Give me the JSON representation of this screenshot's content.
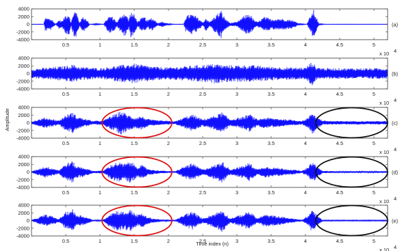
{
  "chart_data": {
    "type": "line",
    "title": "",
    "ylabel": "Amplitude",
    "xlabel": "Time index (n)",
    "x_tick_labels": [
      "0.5",
      "1",
      "1.5",
      "2",
      "2.5",
      "3",
      "3.5",
      "4",
      "4.5",
      "5"
    ],
    "x_tick_values": [
      0.5,
      1,
      1.5,
      2,
      2.5,
      3,
      3.5,
      4,
      4.5,
      5
    ],
    "x_multiplier_base": "x 10",
    "x_multiplier_exp": "4",
    "xlim": [
      0,
      5.2
    ],
    "ylim": [
      -4000,
      4000
    ],
    "y_tick_labels": [
      "4000",
      "2000",
      "0",
      "-2000",
      "-4000"
    ],
    "y_tick_values": [
      4000,
      2000,
      0,
      -2000,
      -4000
    ],
    "grid": false,
    "line_color": "#1010ff",
    "panels": [
      {
        "label": "(a)",
        "noise_floor": 40,
        "envelope": [
          [
            0.0,
            0
          ],
          [
            0.18,
            0
          ],
          [
            0.2,
            1800
          ],
          [
            0.3,
            1400
          ],
          [
            0.35,
            0
          ],
          [
            0.4,
            1200
          ],
          [
            0.45,
            900
          ],
          [
            0.5,
            2600
          ],
          [
            0.55,
            2800
          ],
          [
            0.58,
            500
          ],
          [
            0.62,
            3800
          ],
          [
            0.66,
            3200
          ],
          [
            0.7,
            600
          ],
          [
            0.75,
            2000
          ],
          [
            0.8,
            1600
          ],
          [
            0.85,
            0
          ],
          [
            0.95,
            200
          ],
          [
            1.05,
            0
          ],
          [
            1.1,
            1500
          ],
          [
            1.15,
            2400
          ],
          [
            1.2,
            1800
          ],
          [
            1.25,
            600
          ],
          [
            1.32,
            2800
          ],
          [
            1.37,
            3200
          ],
          [
            1.42,
            1200
          ],
          [
            1.45,
            3400
          ],
          [
            1.5,
            2600
          ],
          [
            1.55,
            800
          ],
          [
            1.6,
            1600
          ],
          [
            1.65,
            2000
          ],
          [
            1.7,
            1000
          ],
          [
            1.75,
            1800
          ],
          [
            1.8,
            1200
          ],
          [
            1.85,
            300
          ],
          [
            1.9,
            800
          ],
          [
            2.0,
            200
          ],
          [
            2.1,
            0
          ],
          [
            2.22,
            0
          ],
          [
            2.25,
            2000
          ],
          [
            2.32,
            2800
          ],
          [
            2.4,
            2200
          ],
          [
            2.45,
            1500
          ],
          [
            2.5,
            500
          ],
          [
            2.55,
            1800
          ],
          [
            2.6,
            600
          ],
          [
            2.7,
            2600
          ],
          [
            2.77,
            3600
          ],
          [
            2.82,
            1800
          ],
          [
            2.9,
            400
          ],
          [
            3.0,
            600
          ],
          [
            3.1,
            2200
          ],
          [
            3.18,
            3000
          ],
          [
            3.25,
            1200
          ],
          [
            3.3,
            600
          ],
          [
            3.4,
            2000
          ],
          [
            3.5,
            1400
          ],
          [
            3.6,
            1600
          ],
          [
            3.7,
            1400
          ],
          [
            3.8,
            1200
          ],
          [
            3.9,
            300
          ],
          [
            4.02,
            0
          ],
          [
            4.08,
            2600
          ],
          [
            4.12,
            3800
          ],
          [
            4.16,
            2000
          ],
          [
            4.2,
            200
          ],
          [
            4.3,
            0
          ],
          [
            5.2,
            0
          ]
        ]
      },
      {
        "label": "(b)",
        "noise_floor": 1000,
        "envelope": [
          [
            0.0,
            1200
          ],
          [
            0.5,
            2000
          ],
          [
            0.6,
            2400
          ],
          [
            0.7,
            1800
          ],
          [
            1.0,
            1400
          ],
          [
            1.3,
            2200
          ],
          [
            1.5,
            2600
          ],
          [
            1.8,
            1800
          ],
          [
            2.0,
            1600
          ],
          [
            2.3,
            2000
          ],
          [
            2.7,
            2600
          ],
          [
            2.8,
            2200
          ],
          [
            3.2,
            2200
          ],
          [
            3.5,
            1800
          ],
          [
            3.8,
            1600
          ],
          [
            4.0,
            1600
          ],
          [
            4.1,
            3200
          ],
          [
            4.15,
            1800
          ],
          [
            4.3,
            1400
          ],
          [
            5.2,
            1400
          ]
        ]
      },
      {
        "label": "(c)",
        "noise_floor": 320,
        "envelope": [
          [
            0.0,
            300
          ],
          [
            0.2,
            1400
          ],
          [
            0.3,
            1000
          ],
          [
            0.4,
            600
          ],
          [
            0.5,
            2000
          ],
          [
            0.6,
            2800
          ],
          [
            0.65,
            1800
          ],
          [
            0.75,
            1200
          ],
          [
            0.9,
            500
          ],
          [
            1.05,
            600
          ],
          [
            1.15,
            1800
          ],
          [
            1.25,
            2400
          ],
          [
            1.3,
            3200
          ],
          [
            1.4,
            2200
          ],
          [
            1.5,
            1400
          ],
          [
            1.6,
            1800
          ],
          [
            1.7,
            1000
          ],
          [
            1.8,
            700
          ],
          [
            2.0,
            500
          ],
          [
            2.1,
            400
          ],
          [
            2.25,
            1600
          ],
          [
            2.35,
            2200
          ],
          [
            2.5,
            900
          ],
          [
            2.7,
            2000
          ],
          [
            2.78,
            2800
          ],
          [
            2.9,
            900
          ],
          [
            3.1,
            1600
          ],
          [
            3.18,
            2400
          ],
          [
            3.3,
            900
          ],
          [
            3.4,
            1400
          ],
          [
            3.6,
            1100
          ],
          [
            3.8,
            800
          ],
          [
            3.95,
            500
          ],
          [
            4.05,
            1500
          ],
          [
            4.1,
            3000
          ],
          [
            4.15,
            2000
          ],
          [
            4.25,
            600
          ],
          [
            4.4,
            450
          ],
          [
            5.2,
            450
          ]
        ]
      },
      {
        "label": "(d)",
        "noise_floor": 220,
        "envelope": [
          [
            0.0,
            200
          ],
          [
            0.2,
            1500
          ],
          [
            0.3,
            1100
          ],
          [
            0.4,
            500
          ],
          [
            0.5,
            2200
          ],
          [
            0.6,
            2900
          ],
          [
            0.65,
            1600
          ],
          [
            0.75,
            1300
          ],
          [
            0.9,
            300
          ],
          [
            1.05,
            400
          ],
          [
            1.15,
            1800
          ],
          [
            1.25,
            2600
          ],
          [
            1.35,
            2200
          ],
          [
            1.45,
            2800
          ],
          [
            1.55,
            1400
          ],
          [
            1.6,
            1900
          ],
          [
            1.7,
            900
          ],
          [
            1.8,
            500
          ],
          [
            2.0,
            250
          ],
          [
            2.1,
            200
          ],
          [
            2.25,
            1700
          ],
          [
            2.35,
            2300
          ],
          [
            2.5,
            700
          ],
          [
            2.7,
            2000
          ],
          [
            2.78,
            2900
          ],
          [
            2.9,
            700
          ],
          [
            3.1,
            1700
          ],
          [
            3.18,
            2500
          ],
          [
            3.3,
            700
          ],
          [
            3.4,
            1500
          ],
          [
            3.6,
            1100
          ],
          [
            3.8,
            700
          ],
          [
            3.95,
            300
          ],
          [
            4.05,
            1400
          ],
          [
            4.1,
            3100
          ],
          [
            4.15,
            1800
          ],
          [
            4.25,
            300
          ],
          [
            4.4,
            230
          ],
          [
            5.2,
            230
          ]
        ]
      },
      {
        "label": "(e)",
        "noise_floor": 130,
        "envelope": [
          [
            0.0,
            100
          ],
          [
            0.2,
            1600
          ],
          [
            0.3,
            1200
          ],
          [
            0.4,
            400
          ],
          [
            0.5,
            2300
          ],
          [
            0.6,
            3000
          ],
          [
            0.65,
            1700
          ],
          [
            0.75,
            1300
          ],
          [
            0.9,
            200
          ],
          [
            1.05,
            250
          ],
          [
            1.15,
            1900
          ],
          [
            1.25,
            2700
          ],
          [
            1.35,
            2300
          ],
          [
            1.45,
            2900
          ],
          [
            1.55,
            1500
          ],
          [
            1.6,
            2000
          ],
          [
            1.7,
            900
          ],
          [
            1.8,
            500
          ],
          [
            2.0,
            120
          ],
          [
            2.1,
            100
          ],
          [
            2.25,
            1800
          ],
          [
            2.35,
            2400
          ],
          [
            2.5,
            600
          ],
          [
            2.7,
            2100
          ],
          [
            2.78,
            3000
          ],
          [
            2.9,
            600
          ],
          [
            3.1,
            1800
          ],
          [
            3.18,
            2600
          ],
          [
            3.3,
            600
          ],
          [
            3.4,
            1600
          ],
          [
            3.6,
            1200
          ],
          [
            3.8,
            600
          ],
          [
            3.95,
            150
          ],
          [
            4.05,
            1500
          ],
          [
            4.1,
            3200
          ],
          [
            4.15,
            1800
          ],
          [
            4.25,
            150
          ],
          [
            4.4,
            120
          ],
          [
            5.2,
            120
          ]
        ]
      }
    ],
    "annotations": [
      {
        "panel": 2,
        "shape": "ellipse",
        "color": "#e01010",
        "x_range": [
          1.03,
          2.05
        ]
      },
      {
        "panel": 3,
        "shape": "ellipse",
        "color": "#e01010",
        "x_range": [
          1.03,
          2.05
        ]
      },
      {
        "panel": 4,
        "shape": "ellipse",
        "color": "#e01010",
        "x_range": [
          1.03,
          2.05
        ]
      },
      {
        "panel": 2,
        "shape": "ellipse",
        "color": "#111111",
        "x_range": [
          4.15,
          5.2
        ]
      },
      {
        "panel": 3,
        "shape": "ellipse",
        "color": "#111111",
        "x_range": [
          4.15,
          5.2
        ]
      },
      {
        "panel": 4,
        "shape": "ellipse",
        "color": "#111111",
        "x_range": [
          4.15,
          5.2
        ]
      }
    ]
  }
}
